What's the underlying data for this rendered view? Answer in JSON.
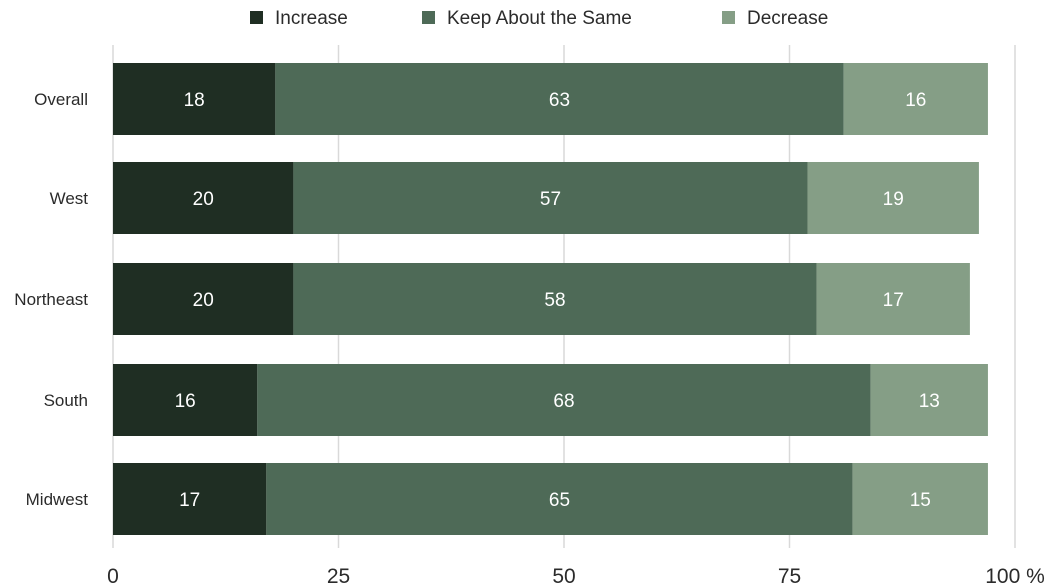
{
  "chart_data": {
    "type": "bar",
    "orientation": "horizontal",
    "stacked": true,
    "categories": [
      "Overall",
      "West",
      "Northeast",
      "South",
      "Midwest"
    ],
    "series": [
      {
        "name": "Increase",
        "values": [
          18,
          20,
          20,
          16,
          17
        ],
        "color": "#1f2e23"
      },
      {
        "name": "Keep About the Same",
        "values": [
          63,
          57,
          58,
          68,
          65
        ],
        "color": "#4e6a57"
      },
      {
        "name": "Decrease",
        "values": [
          16,
          19,
          17,
          13,
          15
        ],
        "color": "#859e86"
      }
    ],
    "xlim": [
      0,
      100
    ],
    "x_ticks": [
      "0",
      "25",
      "50",
      "75",
      "100 %"
    ],
    "legend_position": "top",
    "grid": true
  }
}
